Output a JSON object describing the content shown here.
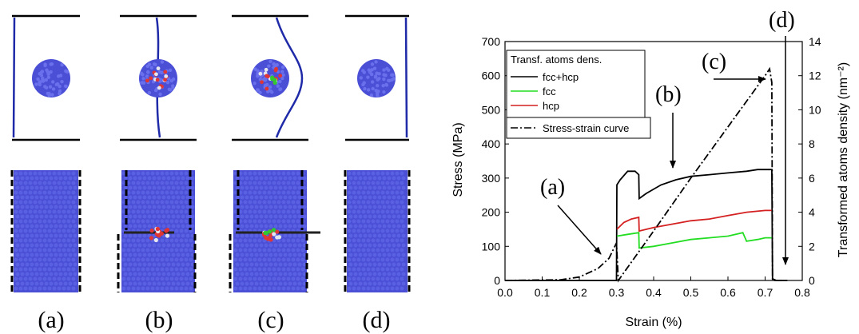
{
  "colors": {
    "atom_blue": "#4a4fd6",
    "atom_red": "#e03535",
    "atom_green": "#32c832",
    "atom_white": "#e6e6ee",
    "dislocation_line": "#1f2aa8",
    "fcc_hcp": "#000000",
    "fcc": "#22dd22",
    "hcp": "#d42020",
    "stress_strain": "#000000"
  },
  "snapshots": {
    "labels": [
      "(a)",
      "(b)",
      "(c)",
      "(d)"
    ]
  },
  "chart_data": {
    "type": "line",
    "xlabel": "Strain (%)",
    "ylabel": "Stress (MPa)",
    "y2label": "Transformed atoms density (nm⁻²)",
    "xlim": [
      0.0,
      0.8
    ],
    "ylim": [
      0,
      700
    ],
    "y2lim": [
      0,
      14
    ],
    "xticks": [
      "0.0",
      "0.1",
      "0.2",
      "0.3",
      "0.4",
      "0.5",
      "0.6",
      "0.7",
      "0.8"
    ],
    "yticks": [
      "0",
      "100",
      "200",
      "300",
      "400",
      "500",
      "600",
      "700"
    ],
    "y2ticks": [
      "0",
      "2",
      "4",
      "6",
      "8",
      "10",
      "12",
      "14"
    ],
    "legend_title": "Transf. atoms dens.",
    "legend_placement": "top-left",
    "series": [
      {
        "name": "fcc+hcp",
        "axis": "y2",
        "style": "solid",
        "color": "#000000",
        "x": [
          0.0,
          0.2,
          0.3,
          0.301,
          0.31,
          0.33,
          0.35,
          0.36,
          0.361,
          0.38,
          0.42,
          0.46,
          0.5,
          0.55,
          0.6,
          0.65,
          0.68,
          0.71,
          0.718,
          0.72,
          0.73,
          0.76
        ],
        "y": [
          0.0,
          0.0,
          0.0,
          5.6,
          5.9,
          6.4,
          6.4,
          6.2,
          4.8,
          5.1,
          5.6,
          5.9,
          6.1,
          6.2,
          6.3,
          6.4,
          6.5,
          6.5,
          6.5,
          0.1,
          0.0,
          0.0
        ]
      },
      {
        "name": "fcc",
        "axis": "y2",
        "style": "solid",
        "color": "#22dd22",
        "x": [
          0.301,
          0.33,
          0.36,
          0.361,
          0.4,
          0.45,
          0.5,
          0.55,
          0.6,
          0.64,
          0.65,
          0.68,
          0.7,
          0.718
        ],
        "y": [
          2.6,
          2.7,
          2.8,
          1.9,
          2.0,
          2.2,
          2.4,
          2.5,
          2.6,
          2.8,
          2.3,
          2.4,
          2.5,
          2.5
        ]
      },
      {
        "name": "hcp",
        "axis": "y2",
        "style": "solid",
        "color": "#d42020",
        "x": [
          0.301,
          0.32,
          0.34,
          0.36,
          0.361,
          0.4,
          0.45,
          0.5,
          0.55,
          0.6,
          0.65,
          0.7,
          0.718
        ],
        "y": [
          3.0,
          3.4,
          3.6,
          3.7,
          2.9,
          3.1,
          3.3,
          3.5,
          3.6,
          3.8,
          4.0,
          4.1,
          4.1
        ]
      },
      {
        "name": "Stress-strain curve",
        "axis": "y",
        "style": "dashdot",
        "color": "#000000",
        "x": [
          0.0,
          0.15,
          0.2,
          0.25,
          0.28,
          0.3,
          0.305,
          0.4,
          0.5,
          0.6,
          0.7,
          0.712,
          0.718,
          0.72,
          0.73,
          0.75
        ],
        "y": [
          0,
          2,
          10,
          35,
          65,
          110,
          0,
          145,
          300,
          450,
          600,
          620,
          580,
          0,
          0,
          0
        ]
      }
    ],
    "annotations": [
      {
        "text": "(a)",
        "x": 0.3,
        "y": 110
      },
      {
        "text": "(b)",
        "x": 0.45,
        "y": 310
      },
      {
        "text": "(c)",
        "x": 0.71,
        "y": 610
      },
      {
        "text": "(d)",
        "x": 0.72,
        "y": 0
      }
    ]
  }
}
